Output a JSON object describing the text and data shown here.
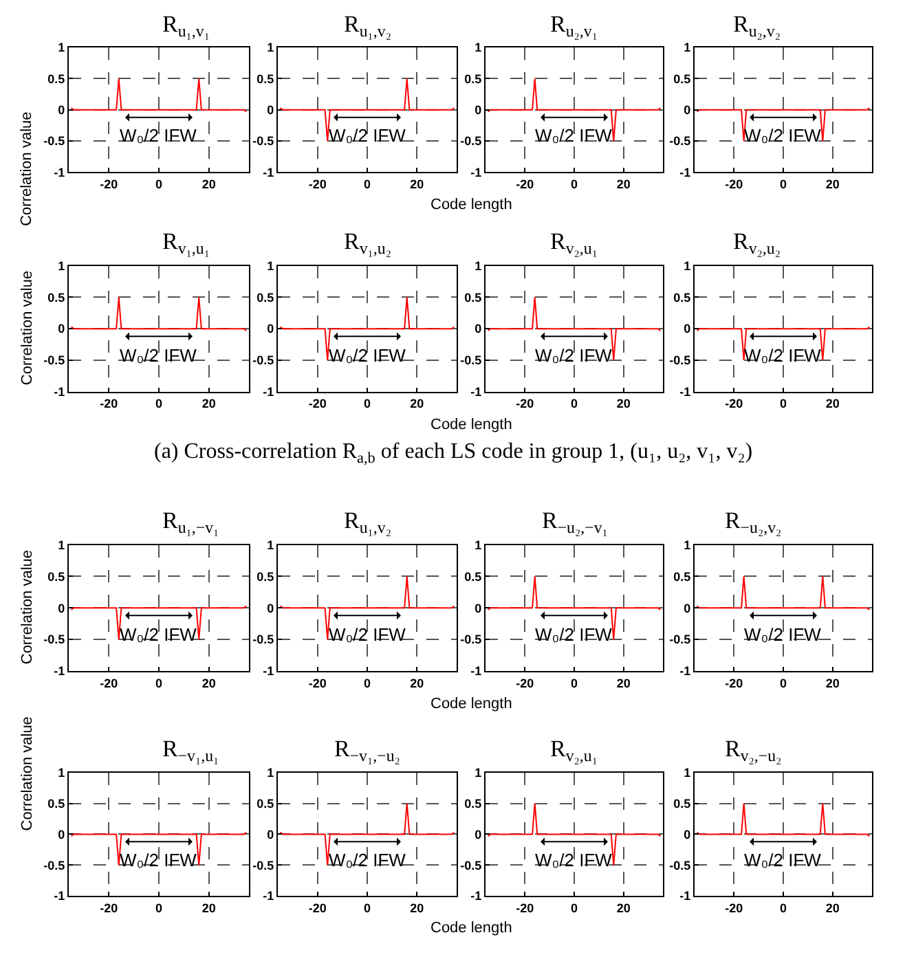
{
  "chart_data": [
    {
      "type": "line",
      "title": "R$_{u₁,v₁}$",
      "ylabel": "Correlation value",
      "annotations": [
        "W₀/2 IFW"
      ],
      "x": [
        -35,
        -34,
        -17,
        -16,
        -15,
        15,
        16,
        17,
        34,
        35
      ],
      "series": [
        {
          "color": "#ff0000",
          "values": [
            0.03,
            0,
            0,
            0.5,
            0,
            0,
            0.5,
            0,
            0,
            -0.03
          ]
        }
      ],
      "xlim": [
        -36,
        36
      ],
      "xticks": [
        -20,
        0,
        20
      ],
      "ylim": [
        -1,
        1
      ],
      "yticks": [
        -1,
        -0.5,
        0,
        0.5,
        1
      ],
      "grid": true,
      "line_style": "solid"
    },
    {
      "type": "line",
      "title": "R$_{u₁,v₂}$",
      "xlabel": "Code length",
      "annotations": [
        "W₀/2 IFW"
      ],
      "x": [
        -35,
        -34,
        -17,
        -16,
        -15,
        15,
        16,
        17,
        34,
        35
      ],
      "series": [
        {
          "color": "#ff0000",
          "values": [
            0.03,
            0,
            0,
            -0.5,
            0,
            0,
            0.5,
            0,
            0,
            0.03
          ]
        }
      ],
      "xlim": [
        -36,
        36
      ],
      "xticks": [
        -20,
        0,
        20
      ],
      "ylim": [
        -1,
        1
      ],
      "yticks": [
        -1,
        -0.5,
        0,
        0.5,
        1
      ],
      "grid": true,
      "line_style": "solid"
    },
    {
      "type": "line",
      "title": "R$_{u₂,v₁}$",
      "annotations": [
        "W₀/2 IFW"
      ],
      "x": [
        -35,
        -34,
        -17,
        -16,
        -15,
        15,
        16,
        17,
        34,
        35
      ],
      "series": [
        {
          "color": "#ff0000",
          "values": [
            -0.03,
            0,
            0,
            0.5,
            0,
            0,
            -0.5,
            0,
            0,
            0.03
          ]
        }
      ],
      "xlim": [
        -36,
        36
      ],
      "xticks": [
        -20,
        0,
        20
      ],
      "ylim": [
        -1,
        1
      ],
      "yticks": [
        -1,
        -0.5,
        0,
        0.5,
        1
      ],
      "grid": true,
      "line_style": "solid"
    },
    {
      "type": "line",
      "title": "R$_{u₂,v₂}$",
      "annotations": [
        "W₀/2 IFW"
      ],
      "x": [
        -35,
        -34,
        -17,
        -16,
        -15,
        15,
        16,
        17,
        34,
        35
      ],
      "series": [
        {
          "color": "#ff0000",
          "values": [
            -0.03,
            0,
            0,
            -0.5,
            0,
            0,
            -0.5,
            0,
            0,
            0.03
          ]
        }
      ],
      "xlim": [
        -36,
        36
      ],
      "xticks": [
        -20,
        0,
        20
      ],
      "ylim": [
        -1,
        1
      ],
      "yticks": [
        -1,
        -0.5,
        0,
        0.5,
        1
      ],
      "grid": true,
      "line_style": "solid"
    },
    {
      "type": "line",
      "title": "R$_{v₁,u₁}$",
      "ylabel": "Correlation value",
      "annotations": [
        "W₀/2 IFW",
        "(a) Cross-correlation R$_{a,b}$ of each LS code in group 1, (u₁, u₂, v₁, v₂)"
      ],
      "x": [
        -35,
        -34,
        -17,
        -16,
        -15,
        15,
        16,
        17,
        34,
        35
      ],
      "series": [
        {
          "color": "#ff0000",
          "values": [
            0.03,
            0,
            0,
            0.5,
            0,
            0,
            0.5,
            0,
            0,
            -0.03
          ]
        }
      ],
      "xlim": [
        -36,
        36
      ],
      "xticks": [
        -20,
        0,
        20
      ],
      "ylim": [
        -1,
        1
      ],
      "yticks": [
        -1,
        -0.5,
        0,
        0.5,
        1
      ],
      "grid": true,
      "line_style": "solid"
    },
    {
      "type": "line",
      "title": "R$_{v₁,u₂}$",
      "xlabel": "Code length",
      "annotations": [
        "W₀/2 IFW"
      ],
      "x": [
        -35,
        -34,
        -17,
        -16,
        -15,
        15,
        16,
        17,
        34,
        35
      ],
      "series": [
        {
          "color": "#ff0000",
          "values": [
            0.03,
            0,
            0,
            -0.5,
            0,
            0,
            0.5,
            0,
            0,
            0.03
          ]
        }
      ],
      "xlim": [
        -36,
        36
      ],
      "xticks": [
        -20,
        0,
        20
      ],
      "ylim": [
        -1,
        1
      ],
      "yticks": [
        -1,
        -0.5,
        0,
        0.5,
        1
      ],
      "grid": true,
      "line_style": "solid"
    },
    {
      "type": "line",
      "title": "R$_{v₂,u₁}$",
      "annotations": [
        "W₀/2 IFW"
      ],
      "x": [
        -35,
        -34,
        -17,
        -16,
        -15,
        15,
        16,
        17,
        34,
        35
      ],
      "series": [
        {
          "color": "#ff0000",
          "values": [
            -0.03,
            0,
            0,
            0.5,
            0,
            0,
            -0.5,
            0,
            0,
            -0.03
          ]
        }
      ],
      "xlim": [
        -36,
        36
      ],
      "xticks": [
        -20,
        0,
        20
      ],
      "ylim": [
        -1,
        1
      ],
      "yticks": [
        -1,
        -0.5,
        0,
        0.5,
        1
      ],
      "grid": true,
      "line_style": "solid"
    },
    {
      "type": "line",
      "title": "R$_{v₂,u₂}$",
      "annotations": [
        "W₀/2 IFW"
      ],
      "x": [
        -35,
        -34,
        -17,
        -16,
        -15,
        15,
        16,
        17,
        34,
        35
      ],
      "series": [
        {
          "color": "#ff0000",
          "values": [
            -0.03,
            0,
            0,
            -0.5,
            0,
            0,
            -0.5,
            0,
            0,
            0.03
          ]
        }
      ],
      "xlim": [
        -36,
        36
      ],
      "xticks": [
        -20,
        0,
        20
      ],
      "ylim": [
        -1,
        1
      ],
      "yticks": [
        -1,
        -0.5,
        0,
        0.5,
        1
      ],
      "grid": true,
      "line_style": "solid"
    },
    {
      "type": "line",
      "title": "R$_{u₁,−v₁}$",
      "ylabel": "Correlation value",
      "annotations": [
        "W₀/2 IFW"
      ],
      "x": [
        -35,
        -34,
        -17,
        -16,
        -15,
        15,
        16,
        17,
        34,
        35
      ],
      "series": [
        {
          "color": "#ff0000",
          "values": [
            -0.03,
            0,
            0,
            -0.5,
            0,
            0,
            -0.5,
            0,
            0,
            0.03
          ]
        }
      ],
      "xlim": [
        -36,
        36
      ],
      "xticks": [
        -20,
        0,
        20
      ],
      "ylim": [
        -1,
        1
      ],
      "yticks": [
        -1,
        -0.5,
        0,
        0.5,
        1
      ],
      "grid": true,
      "line_style": "solid"
    },
    {
      "type": "line",
      "title": "R$_{u₁,v₂}$",
      "xlabel": "Code length",
      "annotations": [
        "W₀/2 IFW"
      ],
      "x": [
        -35,
        -34,
        -17,
        -16,
        -15,
        15,
        16,
        17,
        34,
        35
      ],
      "series": [
        {
          "color": "#ff0000",
          "values": [
            0.03,
            0,
            0,
            -0.5,
            0,
            0,
            0.5,
            0,
            0,
            0.03
          ]
        }
      ],
      "xlim": [
        -36,
        36
      ],
      "xticks": [
        -20,
        0,
        20
      ],
      "ylim": [
        -1,
        1
      ],
      "yticks": [
        -1,
        -0.5,
        0,
        0.5,
        1
      ],
      "grid": true,
      "line_style": "solid"
    },
    {
      "type": "line",
      "title": "R$_{−u₂,−v₁}$",
      "annotations": [
        "W₀/2 IFW"
      ],
      "x": [
        -35,
        -34,
        -17,
        -16,
        -15,
        15,
        16,
        17,
        34,
        35
      ],
      "series": [
        {
          "color": "#ff0000",
          "values": [
            -0.03,
            0,
            0,
            0.5,
            0,
            0,
            -0.5,
            0,
            0,
            -0.03
          ]
        }
      ],
      "xlim": [
        -36,
        36
      ],
      "xticks": [
        -20,
        0,
        20
      ],
      "ylim": [
        -1,
        1
      ],
      "yticks": [
        -1,
        -0.5,
        0,
        0.5,
        1
      ],
      "grid": true,
      "line_style": "solid"
    },
    {
      "type": "line",
      "title": "R$_{−u₂,v₂}$",
      "annotations": [
        "W₀/2 IFW"
      ],
      "x": [
        -35,
        -34,
        -17,
        -16,
        -15,
        15,
        16,
        17,
        34,
        35
      ],
      "series": [
        {
          "color": "#ff0000",
          "values": [
            0.03,
            0,
            0,
            0.5,
            0,
            0,
            0.5,
            0,
            0,
            -0.03
          ]
        }
      ],
      "xlim": [
        -36,
        36
      ],
      "xticks": [
        -20,
        0,
        20
      ],
      "ylim": [
        -1,
        1
      ],
      "yticks": [
        -1,
        -0.5,
        0,
        0.5,
        1
      ],
      "grid": true,
      "line_style": "solid"
    },
    {
      "type": "line",
      "title": "R$_{−v₁,u₁}$",
      "ylabel": "Correlation value",
      "annotations": [
        "W₀/2 IFW"
      ],
      "x": [
        -35,
        -34,
        -17,
        -16,
        -15,
        15,
        16,
        17,
        34,
        35
      ],
      "series": [
        {
          "color": "#ff0000",
          "values": [
            -0.03,
            0,
            0,
            -0.5,
            0,
            0,
            -0.5,
            0,
            0,
            0.03
          ]
        }
      ],
      "xlim": [
        -36,
        36
      ],
      "xticks": [
        -20,
        0,
        20
      ],
      "ylim": [
        -1,
        1
      ],
      "yticks": [
        -1,
        -0.5,
        0,
        0.5,
        1
      ],
      "grid": true,
      "line_style": "solid"
    },
    {
      "type": "line",
      "title": "R$_{−v₁,−u₂}$",
      "xlabel": "Code length",
      "annotations": [
        "W₀/2 IFW"
      ],
      "x": [
        -35,
        -34,
        -17,
        -16,
        -15,
        15,
        16,
        17,
        34,
        35
      ],
      "series": [
        {
          "color": "#ff0000",
          "values": [
            0.03,
            0,
            0,
            -0.5,
            0,
            0,
            0.5,
            0,
            0,
            0.03
          ]
        }
      ],
      "xlim": [
        -36,
        36
      ],
      "xticks": [
        -20,
        0,
        20
      ],
      "ylim": [
        -1,
        1
      ],
      "yticks": [
        -1,
        -0.5,
        0,
        0.5,
        1
      ],
      "grid": true,
      "line_style": "solid"
    },
    {
      "type": "line",
      "title": "R$_{v₂,u₁}$",
      "annotations": [
        "W₀/2 IFW"
      ],
      "x": [
        -35,
        -34,
        -17,
        -16,
        -15,
        15,
        16,
        17,
        34,
        35
      ],
      "series": [
        {
          "color": "#ff0000",
          "values": [
            -0.03,
            0,
            0,
            0.5,
            0,
            0,
            -0.5,
            0,
            0,
            -0.03
          ]
        }
      ],
      "xlim": [
        -36,
        36
      ],
      "xticks": [
        -20,
        0,
        20
      ],
      "ylim": [
        -1,
        1
      ],
      "yticks": [
        -1,
        -0.5,
        0,
        0.5,
        1
      ],
      "grid": true,
      "line_style": "solid"
    },
    {
      "type": "line",
      "title": "R$_{v₂,−u₂}$",
      "annotations": [
        "W₀/2 IFW"
      ],
      "x": [
        -35,
        -34,
        -17,
        -16,
        -15,
        15,
        16,
        17,
        34,
        35
      ],
      "series": [
        {
          "color": "#ff0000",
          "values": [
            0.03,
            0,
            0,
            0.5,
            0,
            0,
            0.5,
            0,
            0,
            -0.03
          ]
        }
      ],
      "xlim": [
        -36,
        36
      ],
      "xticks": [
        -20,
        0,
        20
      ],
      "ylim": [
        -1,
        1
      ],
      "yticks": [
        -1,
        -0.5,
        0,
        0.5,
        1
      ],
      "grid": true,
      "line_style": "solid"
    }
  ]
}
